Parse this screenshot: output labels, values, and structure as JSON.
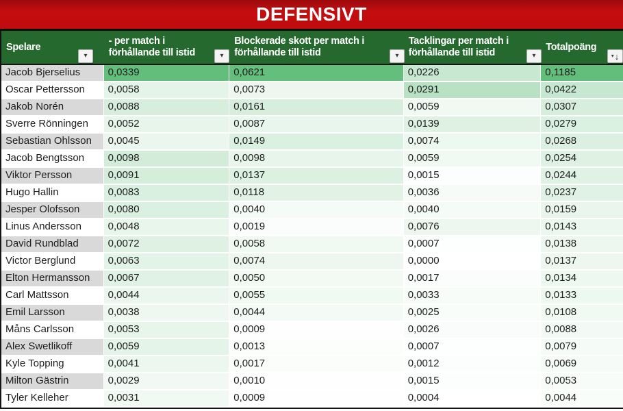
{
  "title": "DEFENSIVT",
  "header": {
    "columns": [
      {
        "id": "spelare",
        "label": "Spelare",
        "filter_icon": "chevron-down"
      },
      {
        "id": "per-match",
        "line1": "- per match i",
        "line2": "förhållande till istid",
        "filter_icon": "chevron-down"
      },
      {
        "id": "blockerade-skott",
        "line1": "Blockerade skott per match i",
        "line2": "förhållande till istid",
        "filter_icon": "chevron-down"
      },
      {
        "id": "tacklingar",
        "line1": "Tacklingar per match i",
        "line2": "förhållande till istid",
        "filter_icon": "chevron-down"
      },
      {
        "id": "totalpoang",
        "label": "Totalpoäng",
        "filter_icon": "sort-descending"
      }
    ]
  },
  "rows": [
    {
      "name": "Jacob Bjerselius",
      "values": [
        "0,0339",
        "0,0621",
        "0,0226",
        "0,1185"
      ]
    },
    {
      "name": "Oscar Pettersson",
      "values": [
        "0,0058",
        "0,0073",
        "0,0291",
        "0,0422"
      ]
    },
    {
      "name": "Jakob Norén",
      "values": [
        "0,0088",
        "0,0161",
        "0,0059",
        "0,0307"
      ]
    },
    {
      "name": "Sverre Rönningen",
      "values": [
        "0,0052",
        "0,0087",
        "0,0139",
        "0,0279"
      ]
    },
    {
      "name": "Sebastian Ohlsson",
      "values": [
        "0,0045",
        "0,0149",
        "0,0074",
        "0,0268"
      ]
    },
    {
      "name": "Jacob Bengtsson",
      "values": [
        "0,0098",
        "0,0098",
        "0,0059",
        "0,0254"
      ]
    },
    {
      "name": "Viktor Persson",
      "values": [
        "0,0091",
        "0,0137",
        "0,0015",
        "0,0244"
      ]
    },
    {
      "name": "Hugo Hallin",
      "values": [
        "0,0083",
        "0,0118",
        "0,0036",
        "0,0237"
      ]
    },
    {
      "name": "Jesper Olofsson",
      "values": [
        "0,0080",
        "0,0040",
        "0,0040",
        "0,0159"
      ]
    },
    {
      "name": "Linus Andersson",
      "values": [
        "0,0048",
        "0,0019",
        "0,0076",
        "0,0143"
      ]
    },
    {
      "name": "David Rundblad",
      "values": [
        "0,0072",
        "0,0058",
        "0,0007",
        "0,0138"
      ]
    },
    {
      "name": "Victor Berglund",
      "values": [
        "0,0063",
        "0,0074",
        "0,0000",
        "0,0137"
      ]
    },
    {
      "name": "Elton Hermansson",
      "values": [
        "0,0067",
        "0,0050",
        "0,0017",
        "0,0134"
      ]
    },
    {
      "name": "Carl Mattsson",
      "values": [
        "0,0044",
        "0,0055",
        "0,0033",
        "0,0133"
      ]
    },
    {
      "name": "Emil Larsson",
      "values": [
        "0,0038",
        "0,0044",
        "0,0025",
        "0,0108"
      ]
    },
    {
      "name": "Måns Carlsson",
      "values": [
        "0,0053",
        "0,0009",
        "0,0026",
        "0,0088"
      ]
    },
    {
      "name": "Alex Swetlikoff",
      "values": [
        "0,0059",
        "0,0013",
        "0,0007",
        "0,0079"
      ]
    },
    {
      "name": "Kyle Topping",
      "values": [
        "0,0041",
        "0,0017",
        "0,0012",
        "0,0069"
      ]
    },
    {
      "name": "Milton Gästrin",
      "values": [
        "0,0029",
        "0,0010",
        "0,0015",
        "0,0053"
      ]
    },
    {
      "name": "Tyler Kelleher",
      "values": [
        "0,0031",
        "0,0009",
        "0,0004",
        "0,0044"
      ]
    }
  ],
  "colors": {
    "title_bg": "#c00d0e",
    "title_text": "#ffffff",
    "header_bg": "#26692e",
    "header_text": "#ffffff",
    "name_fill_odd": "#d9d9d9",
    "name_fill_even": "#ffffff",
    "scale_max_green": "#63be7b",
    "scale_min_white": "#ffffff",
    "grid_border": "#141414",
    "cell_text": "#1e1e1e"
  },
  "color_scale": {
    "type": "white-to-green",
    "column_max": [
      0.034,
      0.0625,
      0.065,
      0.1185
    ]
  }
}
